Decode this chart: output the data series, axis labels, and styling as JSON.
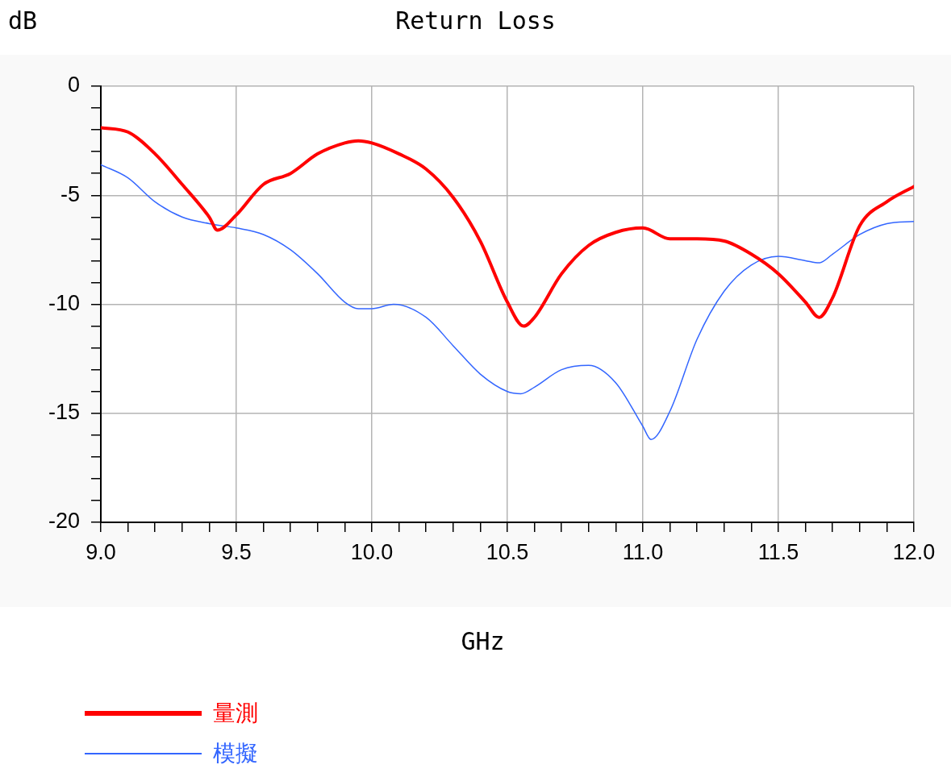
{
  "chart_data": {
    "type": "line",
    "title": "Return Loss",
    "xlabel": "GHz",
    "ylabel": "dB",
    "legend": "bottom left",
    "grid": true,
    "marker": "none",
    "line_style": "solid",
    "xlim": [
      9.0,
      12.0
    ],
    "ylim": [
      -20,
      0
    ],
    "xticks": [
      {
        "value": 9.0,
        "label": "9.0"
      },
      {
        "value": 9.1,
        "label": null
      },
      {
        "value": 9.2,
        "label": null
      },
      {
        "value": 9.3,
        "label": null
      },
      {
        "value": 9.4,
        "label": null
      },
      {
        "value": 9.5,
        "label": "9.5"
      },
      {
        "value": 9.6,
        "label": null
      },
      {
        "value": 9.7,
        "label": null
      },
      {
        "value": 9.8,
        "label": null
      },
      {
        "value": 9.9,
        "label": null
      },
      {
        "value": 10.0,
        "label": "10.0"
      },
      {
        "value": 10.1,
        "label": null
      },
      {
        "value": 10.2,
        "label": null
      },
      {
        "value": 10.3,
        "label": null
      },
      {
        "value": 10.4,
        "label": null
      },
      {
        "value": 10.5,
        "label": "10.5"
      },
      {
        "value": 10.6,
        "label": null
      },
      {
        "value": 10.7,
        "label": null
      },
      {
        "value": 10.8,
        "label": null
      },
      {
        "value": 10.9,
        "label": null
      },
      {
        "value": 11.0,
        "label": "11.0"
      },
      {
        "value": 11.1,
        "label": null
      },
      {
        "value": 11.2,
        "label": null
      },
      {
        "value": 11.3,
        "label": null
      },
      {
        "value": 11.4,
        "label": null
      },
      {
        "value": 11.5,
        "label": "11.5"
      },
      {
        "value": 11.6,
        "label": null
      },
      {
        "value": 11.7,
        "label": null
      },
      {
        "value": 11.8,
        "label": null
      },
      {
        "value": 11.9,
        "label": null
      },
      {
        "value": 12.0,
        "label": "12.0"
      }
    ],
    "yticks": [
      {
        "value": -20,
        "label": "-20"
      },
      {
        "value": -19,
        "label": null
      },
      {
        "value": -18,
        "label": null
      },
      {
        "value": -17,
        "label": null
      },
      {
        "value": -16,
        "label": null
      },
      {
        "value": -15,
        "label": "-15"
      },
      {
        "value": -14,
        "label": null
      },
      {
        "value": -13,
        "label": null
      },
      {
        "value": -12,
        "label": null
      },
      {
        "value": -11,
        "label": null
      },
      {
        "value": -10,
        "label": "-10"
      },
      {
        "value": -9,
        "label": null
      },
      {
        "value": -8,
        "label": null
      },
      {
        "value": -7,
        "label": null
      },
      {
        "value": -6,
        "label": null
      },
      {
        "value": -5,
        "label": "-5"
      },
      {
        "value": -4,
        "label": null
      },
      {
        "value": -3,
        "label": null
      },
      {
        "value": -2,
        "label": null
      },
      {
        "value": -1,
        "label": null
      },
      {
        "value": 0,
        "label": "0"
      }
    ],
    "series": [
      {
        "name": "量測",
        "color": "#ff0000",
        "x": [
          9.0,
          9.1,
          9.2,
          9.3,
          9.4,
          9.43,
          9.5,
          9.6,
          9.7,
          9.8,
          9.9,
          9.95,
          10.0,
          10.1,
          10.2,
          10.3,
          10.4,
          10.5,
          10.56,
          10.6,
          10.7,
          10.8,
          10.9,
          11.0,
          11.1,
          11.2,
          11.3,
          11.4,
          11.5,
          11.6,
          11.65,
          11.7,
          11.8,
          11.9,
          12.0
        ],
        "values": [
          -1.9,
          -2.1,
          -3.1,
          -4.5,
          -6.0,
          -6.6,
          -5.9,
          -4.5,
          -4.0,
          -3.1,
          -2.6,
          -2.5,
          -2.6,
          -3.1,
          -3.8,
          -5.1,
          -7.1,
          -9.9,
          -11.0,
          -10.6,
          -8.6,
          -7.3,
          -6.7,
          -6.5,
          -7.0,
          -7.0,
          -7.1,
          -7.7,
          -8.6,
          -9.9,
          -10.6,
          -9.7,
          -6.4,
          -5.3,
          -4.6
        ]
      },
      {
        "name": "模擬",
        "color": "#3366ff",
        "x": [
          9.0,
          9.1,
          9.2,
          9.3,
          9.4,
          9.5,
          9.6,
          9.7,
          9.8,
          9.9,
          9.95,
          10.0,
          10.08,
          10.2,
          10.3,
          10.4,
          10.5,
          10.55,
          10.6,
          10.7,
          10.8,
          10.9,
          11.0,
          11.03,
          11.1,
          11.2,
          11.3,
          11.4,
          11.5,
          11.6,
          11.65,
          11.7,
          11.8,
          11.9,
          12.0
        ],
        "values": [
          -3.6,
          -4.2,
          -5.3,
          -6.0,
          -6.3,
          -6.5,
          -6.8,
          -7.5,
          -8.6,
          -9.9,
          -10.2,
          -10.2,
          -10.0,
          -10.6,
          -11.9,
          -13.2,
          -14.0,
          -14.1,
          -13.8,
          -13.0,
          -12.8,
          -13.6,
          -15.6,
          -16.2,
          -14.9,
          -11.6,
          -9.4,
          -8.2,
          -7.8,
          -8.0,
          -8.1,
          -7.7,
          -6.8,
          -6.3,
          -6.2
        ]
      }
    ]
  }
}
